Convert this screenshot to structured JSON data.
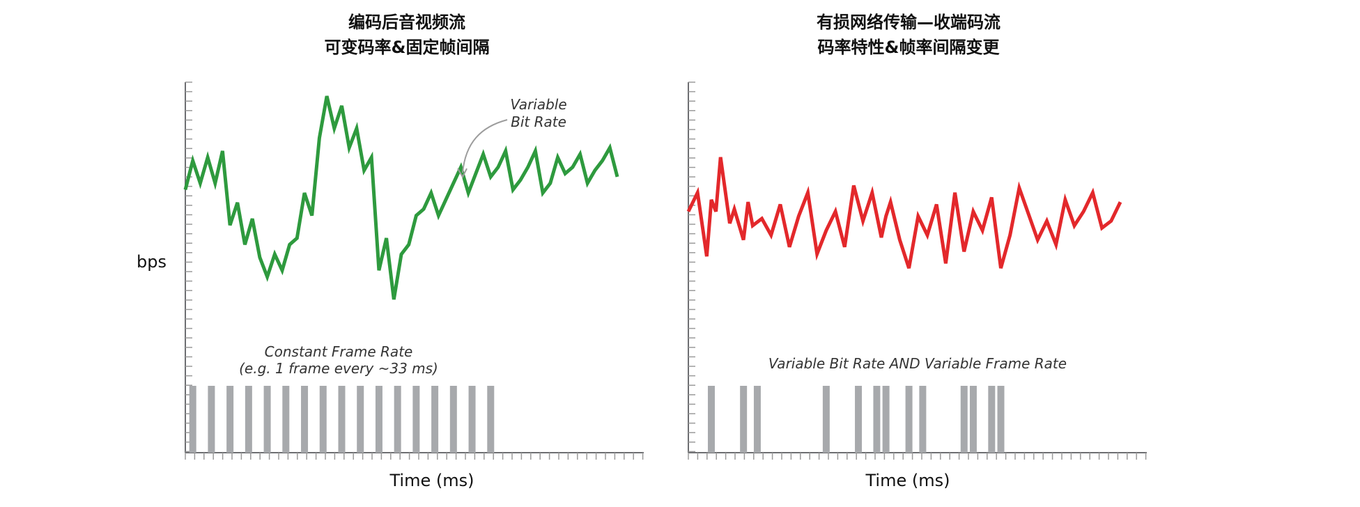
{
  "chart_data": [
    {
      "type": "line",
      "title": "编码后音视频流",
      "subtitle": "可变码率&固定帧间隔",
      "ylabel": "bps",
      "xlabel": "Time (ms)",
      "line_color": "#2e9a3e",
      "frame_bar_color": "#a7a9ac",
      "annotations": {
        "bitrate_label_line1": "Variable",
        "bitrate_label_line2": "Bit Rate",
        "frame_label_line1": "Constant Frame Rate",
        "frame_label_line2": "(e.g. 1 frame every ~33 ms)"
      },
      "series": [
        {
          "x": [
            0,
            2,
            4,
            6,
            8,
            10,
            12,
            14,
            16,
            18,
            20,
            22,
            24,
            26,
            28,
            30,
            32,
            34,
            36,
            38,
            40,
            42,
            44,
            46,
            48,
            50,
            52,
            54,
            56,
            58,
            60,
            62,
            64,
            66,
            68,
            70,
            72,
            74,
            76,
            78,
            80,
            82,
            84,
            86,
            88,
            90,
            92,
            94,
            96,
            98,
            100,
            102,
            104,
            106,
            108,
            110,
            112,
            114,
            116
          ],
          "y": [
            53,
            62,
            55,
            63,
            55,
            65,
            42,
            49,
            36,
            44,
            32,
            26,
            33,
            28,
            36,
            38,
            52,
            45,
            69,
            82,
            72,
            79,
            66,
            72,
            59,
            63,
            28,
            38,
            19,
            33,
            36,
            45,
            47,
            52,
            45,
            50,
            55,
            60,
            52,
            58,
            64,
            57,
            60,
            65,
            53,
            56,
            60,
            65,
            52,
            55,
            63,
            58,
            60,
            64,
            55,
            59,
            62,
            66,
            57
          ]
        }
      ],
      "frames_x": [
        2,
        7,
        12,
        17,
        22,
        27,
        32,
        37,
        42,
        47,
        52,
        57,
        62,
        67,
        72,
        77,
        82
      ]
    },
    {
      "type": "line",
      "title": "有损网络传输—收端码流",
      "subtitle": "码率特性&帧率间隔变更",
      "ylabel": "",
      "xlabel": "Time (ms)",
      "line_color": "#e3282b",
      "frame_bar_color": "#a7a9ac",
      "annotations": {
        "frame_label": "Variable Bit Rate AND Variable Frame Rate"
      },
      "series": [
        {
          "x": [
            0,
            2,
            4,
            5,
            6,
            7,
            9,
            10,
            12,
            13,
            14,
            16,
            18,
            20,
            22,
            24,
            26,
            28,
            30,
            32,
            34,
            36,
            38,
            40,
            42,
            43,
            44,
            46,
            48,
            50,
            52,
            54,
            56,
            58,
            60,
            62,
            64,
            66,
            68,
            70,
            72,
            74,
            76,
            78,
            80,
            82,
            84,
            86,
            88,
            90,
            92,
            94
          ],
          "y": [
            52,
            60,
            33,
            57,
            52,
            75,
            47,
            53,
            40,
            56,
            46,
            49,
            42,
            55,
            37,
            50,
            60,
            34,
            44,
            52,
            37,
            63,
            48,
            60,
            41,
            50,
            56,
            40,
            28,
            50,
            42,
            55,
            30,
            60,
            35,
            52,
            44,
            58,
            28,
            42,
            62,
            51,
            40,
            48,
            38,
            57,
            46,
            52,
            60,
            45,
            48,
            56
          ]
        }
      ],
      "frames_x": [
        5,
        12,
        15,
        30,
        37,
        41,
        43,
        48,
        51,
        60,
        62,
        66,
        68
      ]
    }
  ]
}
